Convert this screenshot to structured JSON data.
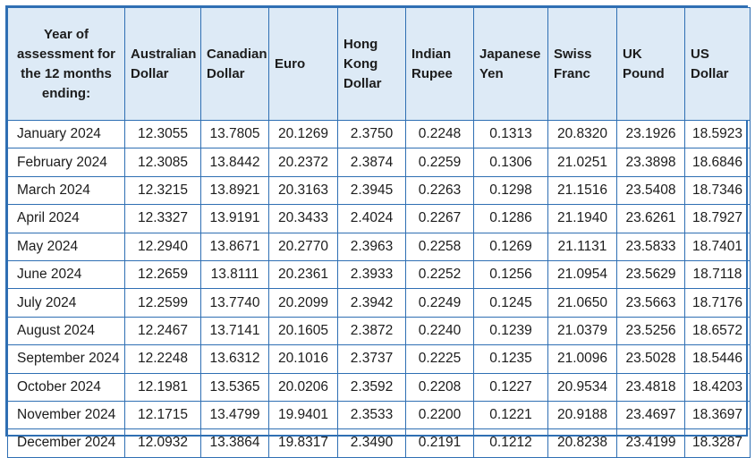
{
  "header": {
    "first": [
      "Year of",
      "assessment for",
      "the 12 months",
      "ending:"
    ],
    "currencies": [
      [
        "Australian",
        "Dollar"
      ],
      [
        "Canadian",
        "Dollar"
      ],
      [
        "Euro"
      ],
      [
        "Hong",
        "Kong",
        "Dollar"
      ],
      [
        "Indian",
        "Rupee"
      ],
      [
        "Japanese",
        "Yen"
      ],
      [
        "Swiss",
        "Franc"
      ],
      [
        "UK",
        "Pound"
      ],
      [
        "US",
        "Dollar"
      ]
    ]
  },
  "rows": [
    {
      "month": "January 2024",
      "values": [
        "12.3055",
        "13.7805",
        "20.1269",
        "2.3750",
        "0.2248",
        "0.1313",
        "20.8320",
        "23.1926",
        "18.5923"
      ]
    },
    {
      "month": "February 2024",
      "values": [
        "12.3085",
        "13.8442",
        "20.2372",
        "2.3874",
        "0.2259",
        "0.1306",
        "21.0251",
        "23.3898",
        "18.6846"
      ]
    },
    {
      "month": "March 2024",
      "values": [
        "12.3215",
        "13.8921",
        "20.3163",
        "2.3945",
        "0.2263",
        "0.1298",
        "21.1516",
        "23.5408",
        "18.7346"
      ]
    },
    {
      "month": "April 2024",
      "values": [
        "12.3327",
        "13.9191",
        "20.3433",
        "2.4024",
        "0.2267",
        "0.1286",
        "21.1940",
        "23.6261",
        "18.7927"
      ]
    },
    {
      "month": "May 2024",
      "values": [
        "12.2940",
        "13.8671",
        "20.2770",
        "2.3963",
        "0.2258",
        "0.1269",
        "21.1131",
        "23.5833",
        "18.7401"
      ]
    },
    {
      "month": "June 2024",
      "values": [
        "12.2659",
        "13.8111",
        "20.2361",
        "2.3933",
        "0.2252",
        "0.1256",
        "21.0954",
        "23.5629",
        "18.7118"
      ]
    },
    {
      "month": "July 2024",
      "values": [
        "12.2599",
        "13.7740",
        "20.2099",
        "2.3942",
        "0.2249",
        "0.1245",
        "21.0650",
        "23.5663",
        "18.7176"
      ]
    },
    {
      "month": "August 2024",
      "values": [
        "12.2467",
        "13.7141",
        "20.1605",
        "2.3872",
        "0.2240",
        "0.1239",
        "21.0379",
        "23.5256",
        "18.6572"
      ]
    },
    {
      "month": "September 2024",
      "values": [
        "12.2248",
        "13.6312",
        "20.1016",
        "2.3737",
        "0.2225",
        "0.1235",
        "21.0096",
        "23.5028",
        "18.5446"
      ]
    },
    {
      "month": "October 2024",
      "values": [
        "12.1981",
        "13.5365",
        "20.0206",
        "2.3592",
        "0.2208",
        "0.1227",
        "20.9534",
        "23.4818",
        "18.4203"
      ]
    },
    {
      "month": "November 2024",
      "values": [
        "12.1715",
        "13.4799",
        "19.9401",
        "2.3533",
        "0.2200",
        "0.1221",
        "20.9188",
        "23.4697",
        "18.3697"
      ]
    },
    {
      "month": "December 2024",
      "values": [
        "12.0932",
        "13.3864",
        "19.8317",
        "2.3490",
        "0.2191",
        "0.1212",
        "20.8238",
        "23.4199",
        "18.3287"
      ]
    }
  ]
}
